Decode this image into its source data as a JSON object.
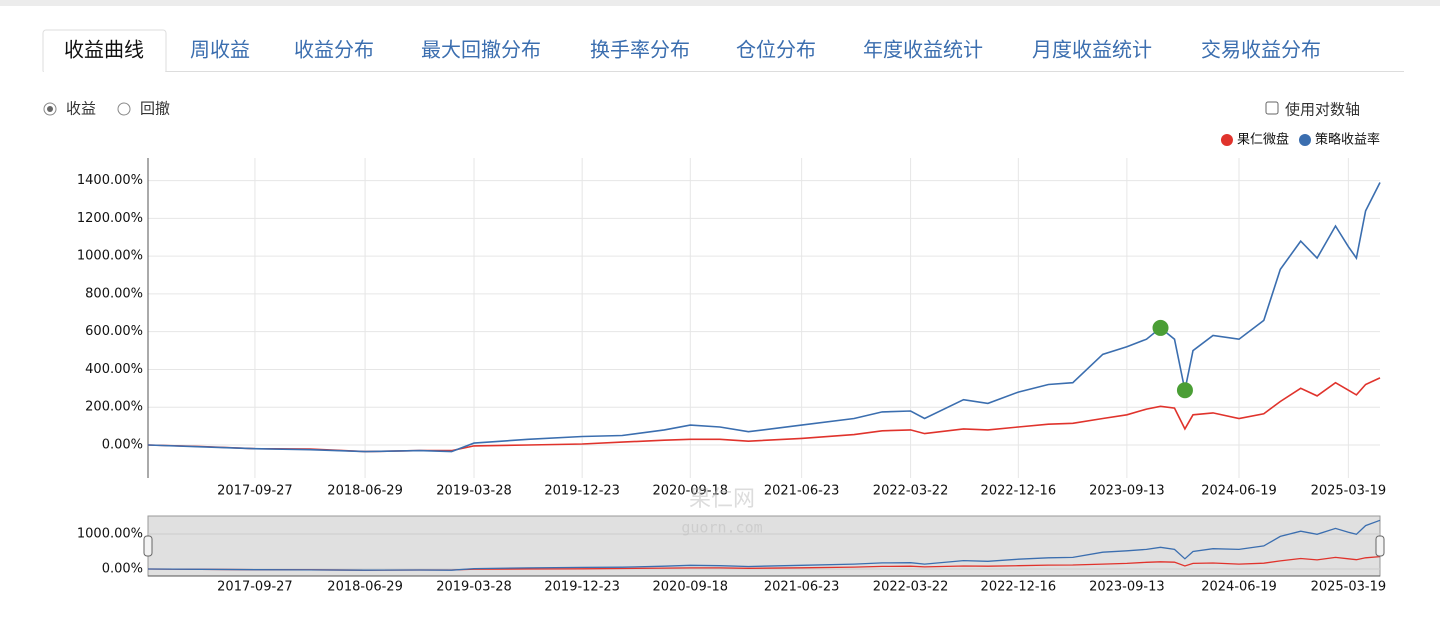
{
  "tabs": [
    "收益曲线",
    "周收益",
    "收益分布",
    "最大回撤分布",
    "换手率分布",
    "仓位分布",
    "年度收益统计",
    "月度收益统计",
    "交易收益分布"
  ],
  "radios": [
    "收益",
    "回撤"
  ],
  "checkbox": "使用对数轴",
  "watermark": [
    "果仁网",
    "guorn.com"
  ],
  "chart_data": {
    "type": "line",
    "x": [
      "2017-01-03",
      "2017-05-15",
      "2017-09-27",
      "2018-02-12",
      "2018-06-29",
      "2018-11-12",
      "2019-01-31",
      "2019-03-28",
      "2019-08-10",
      "2019-12-23",
      "2020-04-01",
      "2020-07-15",
      "2020-09-18",
      "2020-12-01",
      "2021-02-10",
      "2021-06-23",
      "2021-11-01",
      "2022-01-10",
      "2022-03-22",
      "2022-04-26",
      "2022-08-01",
      "2022-10-01",
      "2022-12-16",
      "2023-03-01",
      "2023-05-01",
      "2023-07-15",
      "2023-09-13",
      "2023-11-01",
      "2023-12-06",
      "2024-01-10",
      "2024-02-05",
      "2024-02-25",
      "2024-04-15",
      "2024-06-19",
      "2024-08-20",
      "2024-09-30",
      "2024-11-20",
      "2024-12-31",
      "2025-02-15",
      "2025-03-19",
      "2025-04-08",
      "2025-05-01",
      "2025-06-06"
    ],
    "series": [
      {
        "name": "果仁微盘",
        "color": "#e0332c",
        "values": [
          0,
          -8,
          -20,
          -22,
          -35,
          -30,
          -30,
          -5,
          0,
          5,
          15,
          25,
          30,
          30,
          20,
          35,
          55,
          75,
          80,
          60,
          85,
          80,
          95,
          110,
          115,
          140,
          160,
          190,
          205,
          195,
          85,
          160,
          170,
          140,
          165,
          230,
          300,
          260,
          330,
          290,
          265,
          320,
          355
        ]
      },
      {
        "name": "策略收益率",
        "color": "#3b6eaf",
        "values": [
          0,
          -10,
          -20,
          -25,
          -35,
          -30,
          -35,
          10,
          30,
          45,
          50,
          80,
          105,
          95,
          70,
          105,
          140,
          175,
          180,
          140,
          240,
          220,
          280,
          320,
          330,
          480,
          520,
          560,
          620,
          560,
          290,
          500,
          580,
          560,
          660,
          930,
          1080,
          990,
          1160,
          1050,
          990,
          1240,
          1390
        ]
      }
    ],
    "markers": {
      "color": "#4a9e35",
      "x": [
        "2023-12-06",
        "2024-02-05"
      ],
      "values": [
        620,
        290
      ]
    },
    "xlim": [
      "2017-01-03",
      "2025-06-06"
    ],
    "xticks": [
      "2017-09-27",
      "2018-06-29",
      "2019-03-28",
      "2019-12-23",
      "2020-09-18",
      "2021-06-23",
      "2022-03-22",
      "2022-12-16",
      "2023-09-13",
      "2024-06-19",
      "2025-03-19"
    ],
    "ylim": [
      -175,
      1520
    ],
    "yticks": [
      {
        "value": 0,
        "label": "0.00%"
      },
      {
        "value": 200,
        "label": "200.00%"
      },
      {
        "value": 400,
        "label": "400.00%"
      },
      {
        "value": 600,
        "label": "600.00%"
      },
      {
        "value": 800,
        "label": "800.00%"
      },
      {
        "value": 1000,
        "label": "1000.00%"
      },
      {
        "value": 1200,
        "label": "1200.00%"
      },
      {
        "value": 1400,
        "label": "1400.00%"
      }
    ],
    "grid": true,
    "legend": "top-right",
    "navigator": {
      "ylim": [
        -200,
        1514
      ],
      "yticks": [
        {
          "value": 0,
          "label": "0.00%"
        },
        {
          "value": 1000,
          "label": "1000.00%"
        }
      ]
    }
  }
}
